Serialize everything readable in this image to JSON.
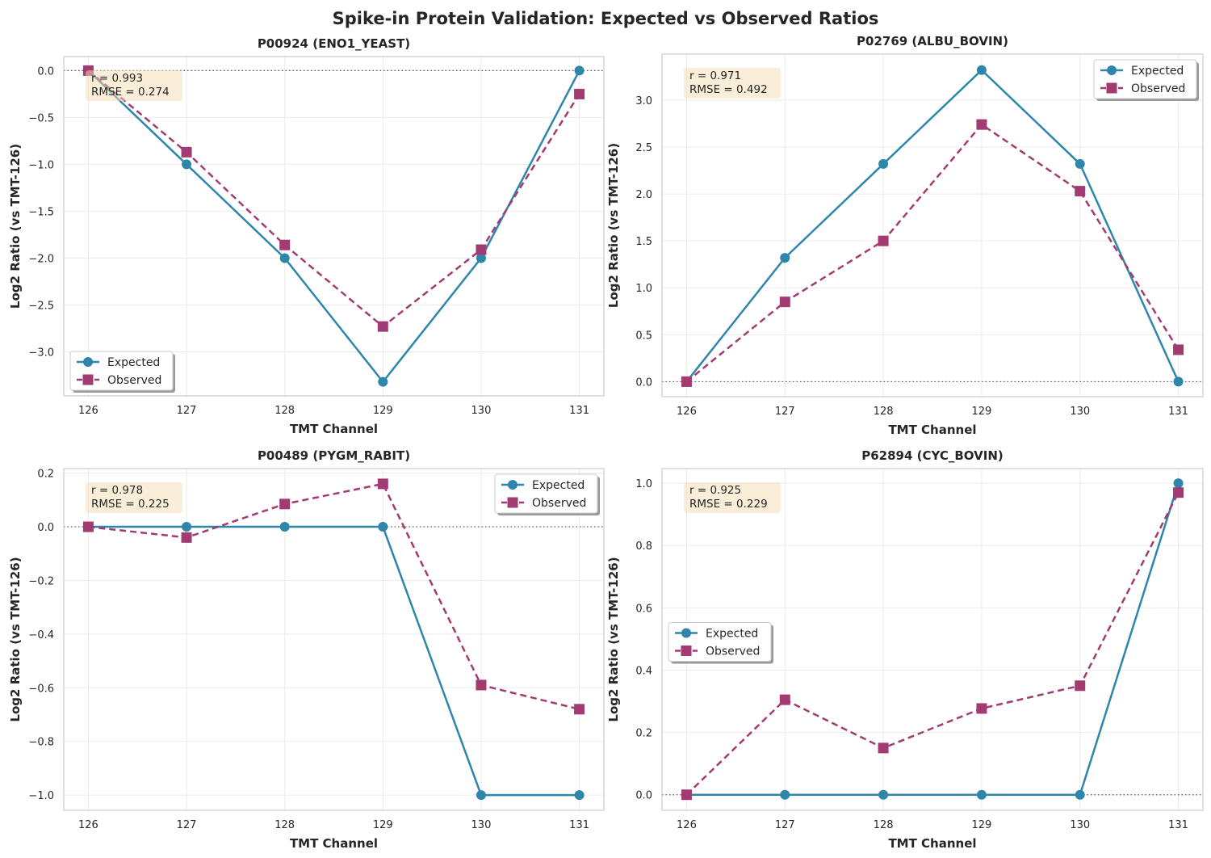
{
  "figure_title": "Spike-in Protein Validation: Expected vs Observed Ratios",
  "colors": {
    "expected": "#2E86AB",
    "observed": "#A23B72",
    "stats_box": "#F5DEB3"
  },
  "chart_data": [
    {
      "type": "line",
      "title": "P00924 (ENO1_YEAST)",
      "xlabel": "TMT Channel",
      "ylabel": "Log2 Ratio (vs TMT-126)",
      "x": [
        126,
        127,
        128,
        129,
        130,
        131
      ],
      "xlim": [
        125.75,
        131.25
      ],
      "ylim": [
        -3.47,
        0.15
      ],
      "yticks": [
        0.0,
        -0.5,
        -1.0,
        -1.5,
        -2.0,
        -2.5,
        -3.0
      ],
      "ytick_labels": [
        "0.0",
        "−0.5",
        "−1.0",
        "−1.5",
        "−2.0",
        "−2.5",
        "−3.0"
      ],
      "series": [
        {
          "name": "Expected",
          "values": [
            0,
            -1,
            -2,
            -3.32,
            -2,
            0
          ]
        },
        {
          "name": "Observed",
          "values": [
            0,
            -0.87,
            -1.86,
            -2.73,
            -1.91,
            -0.25
          ]
        }
      ],
      "annotation": [
        "r = 0.993",
        "RMSE = 0.274"
      ],
      "legend": "lower-left",
      "grid": true,
      "reference_line": 0
    },
    {
      "type": "line",
      "title": "P02769 (ALBU_BOVIN)",
      "xlabel": "TMT Channel",
      "ylabel": "Log2 Ratio (vs TMT-126)",
      "x": [
        126,
        127,
        128,
        129,
        130,
        131
      ],
      "xlim": [
        125.75,
        131.25
      ],
      "ylim": [
        -0.16,
        3.49
      ],
      "yticks": [
        0.0,
        0.5,
        1.0,
        1.5,
        2.0,
        2.5,
        3.0
      ],
      "ytick_labels": [
        "0.0",
        "0.5",
        "1.0",
        "1.5",
        "2.0",
        "2.5",
        "3.0"
      ],
      "series": [
        {
          "name": "Expected",
          "values": [
            0,
            1.32,
            2.32,
            3.32,
            2.32,
            0
          ]
        },
        {
          "name": "Observed",
          "values": [
            0,
            0.85,
            1.5,
            2.74,
            2.03,
            0.34
          ]
        }
      ],
      "annotation": [
        "r = 0.971",
        "RMSE = 0.492"
      ],
      "legend": "upper-right",
      "grid": true,
      "reference_line": 0
    },
    {
      "type": "line",
      "title": "P00489 (PYGM_RABIT)",
      "xlabel": "TMT Channel",
      "ylabel": "Log2 Ratio (vs TMT-126)",
      "x": [
        126,
        127,
        128,
        129,
        130,
        131
      ],
      "xlim": [
        125.75,
        131.25
      ],
      "ylim": [
        -1.057,
        0.217
      ],
      "yticks": [
        0.2,
        0.0,
        -0.2,
        -0.4,
        -0.6,
        -0.8,
        -1.0
      ],
      "ytick_labels": [
        "0.2",
        "0.0",
        "−0.2",
        "−0.4",
        "−0.6",
        "−0.8",
        "−1.0"
      ],
      "series": [
        {
          "name": "Expected",
          "values": [
            0,
            0,
            0,
            0,
            -1,
            -1
          ]
        },
        {
          "name": "Observed",
          "values": [
            0,
            -0.04,
            0.085,
            0.16,
            -0.59,
            -0.68
          ]
        }
      ],
      "annotation": [
        "r = 0.978",
        "RMSE = 0.225"
      ],
      "legend": "upper-right",
      "grid": true,
      "reference_line": 0
    },
    {
      "type": "line",
      "title": "P62894 (CYC_BOVIN)",
      "xlabel": "TMT Channel",
      "ylabel": "Log2 Ratio (vs TMT-126)",
      "x": [
        126,
        127,
        128,
        129,
        130,
        131
      ],
      "xlim": [
        125.75,
        131.25
      ],
      "ylim": [
        -0.05,
        1.047
      ],
      "yticks": [
        0.0,
        0.2,
        0.4,
        0.6,
        0.8,
        1.0
      ],
      "ytick_labels": [
        "0.0",
        "0.2",
        "0.4",
        "0.6",
        "0.8",
        "1.0"
      ],
      "series": [
        {
          "name": "Expected",
          "values": [
            0,
            0,
            0,
            0,
            0,
            1
          ]
        },
        {
          "name": "Observed",
          "values": [
            0,
            0.305,
            0.15,
            0.277,
            0.35,
            0.97
          ]
        }
      ],
      "annotation": [
        "r = 0.925",
        "RMSE = 0.229"
      ],
      "legend": "center-left",
      "grid": true,
      "reference_line": 0
    }
  ]
}
